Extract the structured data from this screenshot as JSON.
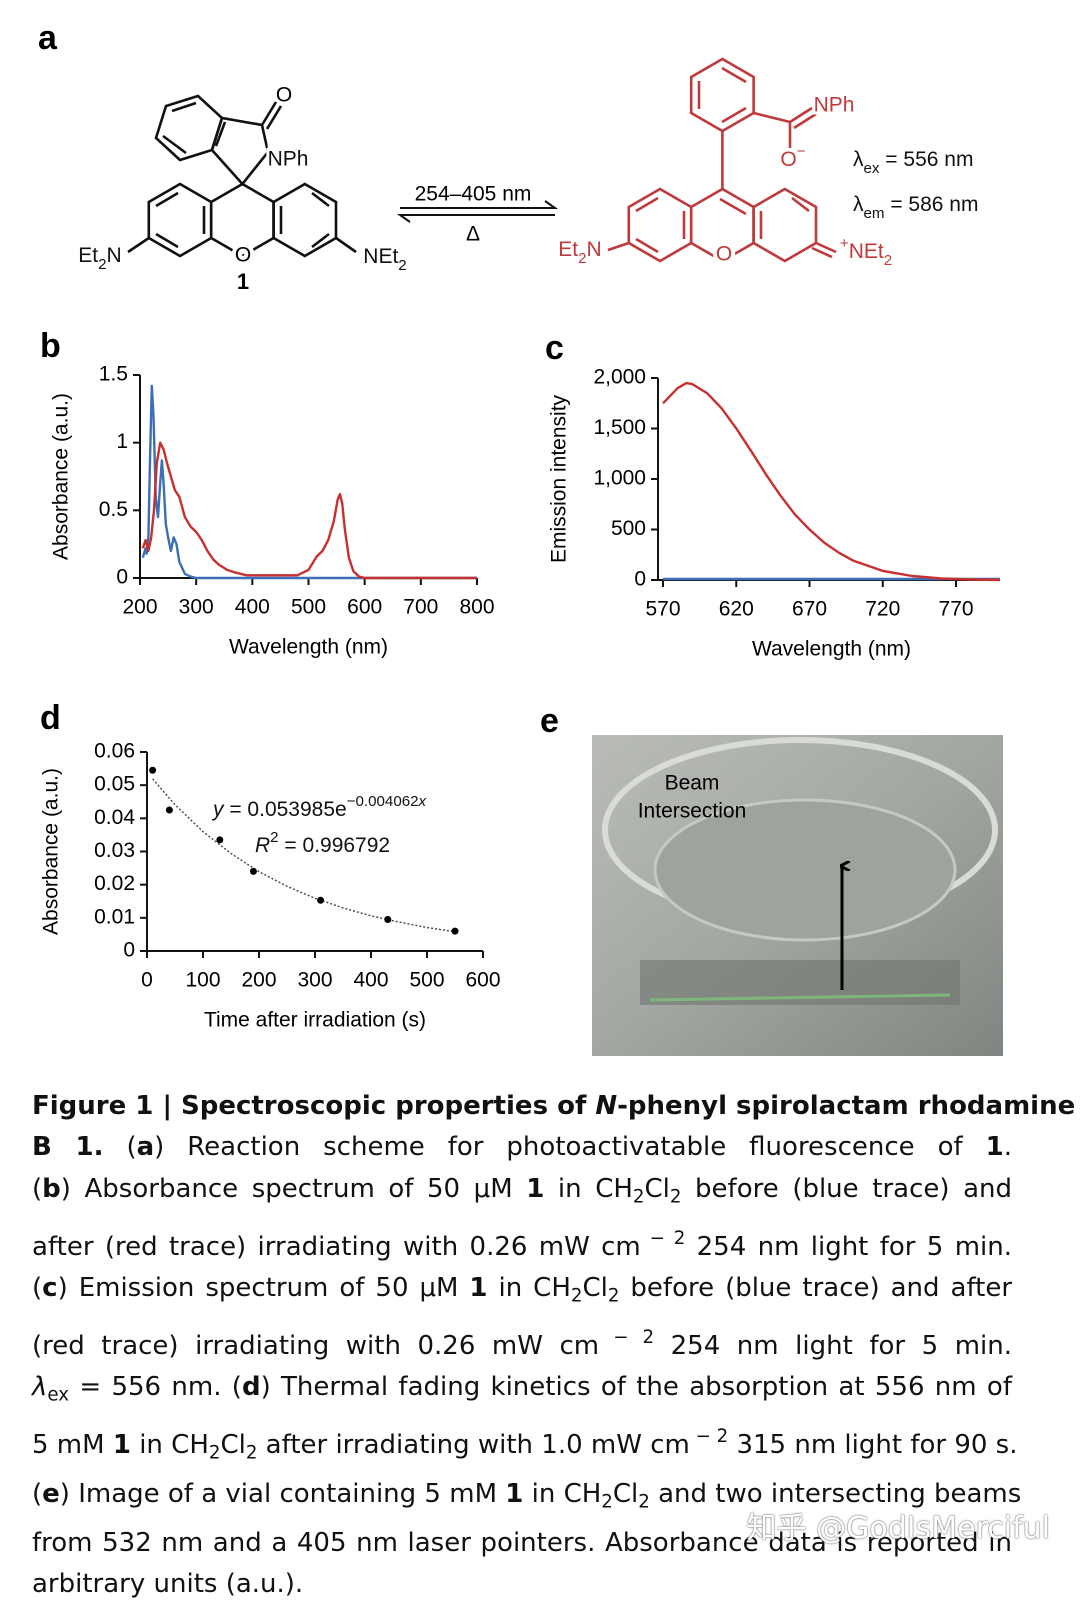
{
  "panel_a": {
    "label": "a",
    "compound_left": {
      "carbonyl_o": "O",
      "nph": "NPh",
      "ring_o": "O",
      "number": "1",
      "amine_left": [
        {
          "text": "Et"
        },
        {
          "text": "2",
          "style": "sub"
        },
        {
          "text": "N"
        }
      ],
      "amine_right": [
        {
          "text": "NEt"
        },
        {
          "text": "2",
          "style": "sub"
        }
      ]
    },
    "arrow": {
      "top": "254–405 nm",
      "bottom": "Δ"
    },
    "compound_right": {
      "nph": "NPh",
      "ring_o": "O",
      "oxide": [
        {
          "text": "O"
        },
        {
          "text": "−",
          "style": "sup"
        }
      ],
      "amine_left": [
        {
          "text": "Et"
        },
        {
          "text": "2",
          "style": "sub"
        },
        {
          "text": "N"
        }
      ],
      "iminium": [
        {
          "text": "+",
          "style": "sup"
        },
        {
          "text": "NEt"
        },
        {
          "text": "2",
          "style": "sub"
        }
      ]
    },
    "lambda_ex": [
      {
        "text": "λ"
      },
      {
        "text": "ex",
        "style": "sub"
      },
      {
        "text": " = 556 nm"
      }
    ],
    "lambda_em": [
      {
        "text": "λ"
      },
      {
        "text": "em",
        "style": "sub"
      },
      {
        "text": " = 586 nm"
      }
    ]
  },
  "chart_data": [
    {
      "type": "line",
      "panel": "b",
      "xlabel": "Wavelength (nm)",
      "ylabel": "Absorbance (a.u.)",
      "xlim": [
        200,
        800
      ],
      "ylim": [
        0,
        1.5
      ],
      "xticks": [
        200,
        300,
        400,
        500,
        600,
        700,
        800
      ],
      "yticks": [
        0,
        0.5,
        1,
        1.5
      ],
      "series": [
        {
          "color": "#3b6fb6",
          "x": [
            205,
            210,
            212,
            215,
            218,
            221,
            224,
            228,
            232,
            236,
            239,
            242,
            246,
            250,
            255,
            260,
            265,
            270,
            280,
            290,
            300,
            800
          ],
          "values": [
            0.15,
            0.22,
            0.18,
            0.3,
            0.9,
            1.42,
            1.2,
            0.6,
            0.45,
            0.7,
            0.87,
            0.7,
            0.4,
            0.3,
            0.2,
            0.3,
            0.25,
            0.12,
            0.03,
            0.01,
            0,
            0
          ]
        },
        {
          "color": "#c8302f",
          "x": [
            205,
            210,
            215,
            220,
            225,
            230,
            236,
            242,
            248,
            255,
            262,
            270,
            280,
            290,
            300,
            310,
            320,
            330,
            340,
            355,
            370,
            390,
            420,
            450,
            480,
            500,
            515,
            525,
            535,
            545,
            552,
            556,
            560,
            565,
            572,
            580,
            590,
            600,
            650,
            700,
            800
          ],
          "values": [
            0.22,
            0.28,
            0.2,
            0.3,
            0.5,
            0.85,
            1.0,
            0.95,
            0.85,
            0.75,
            0.65,
            0.6,
            0.45,
            0.38,
            0.34,
            0.28,
            0.2,
            0.14,
            0.1,
            0.06,
            0.04,
            0.02,
            0.02,
            0.02,
            0.02,
            0.06,
            0.16,
            0.2,
            0.28,
            0.42,
            0.58,
            0.62,
            0.55,
            0.35,
            0.15,
            0.05,
            0.01,
            0,
            0,
            0,
            0
          ]
        }
      ]
    },
    {
      "type": "line",
      "panel": "c",
      "xlabel": "Wavelength (nm)",
      "ylabel": "Emission intensity",
      "xlim": [
        570,
        800
      ],
      "ylim": [
        0,
        2000
      ],
      "xticks": [
        570,
        620,
        670,
        720,
        770
      ],
      "yticks": [
        0,
        500,
        {
          "value": 1000,
          "label": "1,000"
        },
        {
          "value": 1500,
          "label": "1,500"
        },
        {
          "value": 2000,
          "label": "2,000"
        }
      ],
      "series": [
        {
          "color": "#3b6fb6",
          "x": [
            570,
            800
          ],
          "values": [
            10,
            10
          ]
        },
        {
          "color": "#c8302f",
          "x": [
            570,
            580,
            586,
            590,
            600,
            610,
            620,
            630,
            640,
            650,
            660,
            670,
            680,
            690,
            700,
            720,
            740,
            760,
            780,
            800
          ],
          "values": [
            1750,
            1900,
            1950,
            1940,
            1850,
            1700,
            1500,
            1280,
            1050,
            840,
            650,
            500,
            370,
            270,
            190,
            90,
            40,
            15,
            5,
            0
          ]
        }
      ]
    },
    {
      "type": "scatter",
      "panel": "d",
      "xlabel": "Time after irradiation (s)",
      "ylabel": "Absorbance (a.u.)",
      "xlim": [
        0,
        600
      ],
      "ylim": [
        0,
        0.06
      ],
      "xticks": [
        0,
        100,
        200,
        300,
        400,
        500,
        600
      ],
      "yticks": [
        0,
        0.01,
        0.02,
        0.03,
        0.04,
        0.05,
        0.06
      ],
      "series": [
        {
          "color": "#000000",
          "x": [
            10,
            40,
            130,
            190,
            310,
            430,
            550
          ],
          "values": [
            0.0545,
            0.0425,
            0.0335,
            0.024,
            0.0153,
            0.0095,
            0.006
          ]
        }
      ],
      "fit": {
        "color": "#444444",
        "x": [
          10,
          50,
          100,
          150,
          200,
          250,
          300,
          350,
          400,
          450,
          500,
          550
        ],
        "values": [
          0.0519,
          0.0441,
          0.036,
          0.0294,
          0.0239,
          0.0195,
          0.0159,
          0.013,
          0.0106,
          0.0087,
          0.0071,
          0.0058
        ]
      },
      "equation": [
        {
          "text": "y",
          "style": "i"
        },
        {
          "text": " = 0.053985e"
        },
        {
          "text": "−0.004062",
          "style": "sup"
        },
        {
          "text": "x",
          "style": "sup-i"
        }
      ],
      "r_squared": [
        {
          "text": "R",
          "style": "i"
        },
        {
          "text": "2",
          "style": "sup"
        },
        {
          "text": " = 0.996792"
        }
      ]
    }
  ],
  "panel_e": {
    "label": "e",
    "annotation": [
      "Beam",
      "Intersection"
    ]
  },
  "caption": [
    [
      {
        "text": "Figure 1 | Spectroscopic properties of ",
        "style": "b"
      },
      {
        "text": "N",
        "style": "bi"
      },
      {
        "text": "-phenyl spirolactam rhodamine",
        "style": "b"
      }
    ],
    [
      {
        "text": "B 1.",
        "style": "b"
      },
      {
        "text": " ("
      },
      {
        "text": "a",
        "style": "b"
      },
      {
        "text": ") Reaction scheme for photoactivatable fluorescence of "
      },
      {
        "text": "1",
        "style": "b"
      },
      {
        "text": "."
      }
    ],
    [
      {
        "text": "("
      },
      {
        "text": "b",
        "style": "b"
      },
      {
        "text": ") Absorbance spectrum of 50 μM "
      },
      {
        "text": "1",
        "style": "b"
      },
      {
        "text": " in CH"
      },
      {
        "text": "2",
        "style": "sub"
      },
      {
        "text": "Cl"
      },
      {
        "text": "2",
        "style": "sub"
      },
      {
        "text": " before (blue trace) and"
      }
    ],
    [
      {
        "text": "after (red trace) irradiating with 0.26 mW cm"
      },
      {
        "text": " − 2",
        "style": "sup"
      },
      {
        "text": " 254 nm light for 5 min."
      }
    ],
    [
      {
        "text": "("
      },
      {
        "text": "c",
        "style": "b"
      },
      {
        "text": ") Emission spectrum of 50 μM "
      },
      {
        "text": "1",
        "style": "b"
      },
      {
        "text": " in CH"
      },
      {
        "text": "2",
        "style": "sub"
      },
      {
        "text": "Cl"
      },
      {
        "text": "2",
        "style": "sub"
      },
      {
        "text": " before (blue trace) and after"
      }
    ],
    [
      {
        "text": "(red trace) irradiating with 0.26 mW cm"
      },
      {
        "text": " − 2",
        "style": "sup"
      },
      {
        "text": " 254 nm light for 5 min."
      }
    ],
    [
      {
        "text": "λ",
        "style": "i"
      },
      {
        "text": "ex",
        "style": "sub"
      },
      {
        "text": " = 556 nm. ("
      },
      {
        "text": "d",
        "style": "b"
      },
      {
        "text": ") Thermal fading kinetics of the absorption at 556 nm of"
      }
    ],
    [
      {
        "text": "5 mM "
      },
      {
        "text": "1",
        "style": "b"
      },
      {
        "text": " in CH"
      },
      {
        "text": "2",
        "style": "sub"
      },
      {
        "text": "Cl"
      },
      {
        "text": "2",
        "style": "sub"
      },
      {
        "text": " after irradiating with 1.0 mW cm"
      },
      {
        "text": " − 2",
        "style": "sup"
      },
      {
        "text": " 315 nm light for 90 s."
      }
    ],
    [
      {
        "text": "("
      },
      {
        "text": "e",
        "style": "b"
      },
      {
        "text": ") Image of a vial containing 5 mM "
      },
      {
        "text": "1",
        "style": "b"
      },
      {
        "text": " in CH"
      },
      {
        "text": "2",
        "style": "sub"
      },
      {
        "text": "Cl"
      },
      {
        "text": "2",
        "style": "sub"
      },
      {
        "text": " and two intersecting beams"
      }
    ],
    [
      {
        "text": "from 532 nm and a 405 nm laser pointers. Absorbance data is reported in"
      }
    ],
    [
      {
        "text": "arbitrary units (a.u.)."
      }
    ]
  ],
  "watermark": "知乎 @GodIsMerciful"
}
